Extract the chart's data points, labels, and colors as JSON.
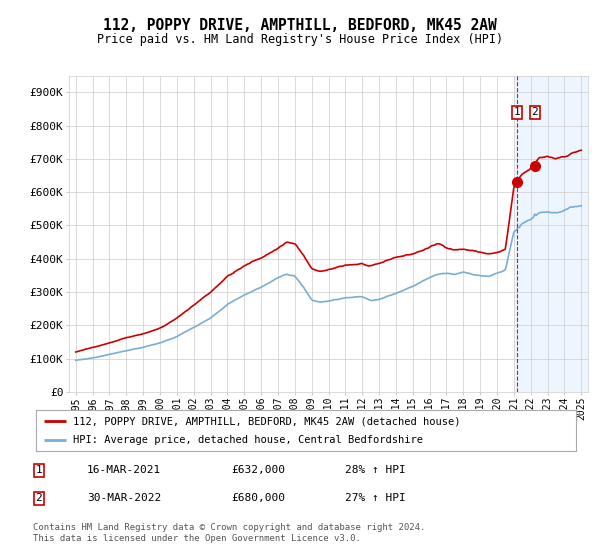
{
  "title": "112, POPPY DRIVE, AMPTHILL, BEDFORD, MK45 2AW",
  "subtitle": "Price paid vs. HM Land Registry's House Price Index (HPI)",
  "legend_line1": "112, POPPY DRIVE, AMPTHILL, BEDFORD, MK45 2AW (detached house)",
  "legend_line2": "HPI: Average price, detached house, Central Bedfordshire",
  "footnote": "Contains HM Land Registry data © Crown copyright and database right 2024.\nThis data is licensed under the Open Government Licence v3.0.",
  "transaction1_label": "1",
  "transaction1_date": "16-MAR-2021",
  "transaction1_price": "£632,000",
  "transaction1_hpi": "28% ↑ HPI",
  "transaction2_label": "2",
  "transaction2_date": "30-MAR-2022",
  "transaction2_price": "£680,000",
  "transaction2_hpi": "27% ↑ HPI",
  "line_color_red": "#cc0000",
  "line_color_blue": "#7aadd4",
  "marker_color": "#cc0000",
  "shade_color": "#ddeeff",
  "dashed_line_color": "#cc0000",
  "grid_color": "#cccccc",
  "background_color": "#ffffff",
  "ylim": [
    0,
    950000
  ],
  "yticks": [
    0,
    100000,
    200000,
    300000,
    400000,
    500000,
    600000,
    700000,
    800000,
    900000
  ],
  "ytick_labels": [
    "£0",
    "£100K",
    "£200K",
    "£300K",
    "£400K",
    "£500K",
    "£600K",
    "£700K",
    "£800K",
    "£900K"
  ],
  "start_year": 1995,
  "end_year": 2025,
  "transaction1_year": 2021.21,
  "transaction2_year": 2022.24,
  "transaction1_price_val": 632000,
  "transaction2_price_val": 680000,
  "transaction1_hpi_val": 493750,
  "transaction2_hpi_val": 534400,
  "red_keypoints_t": [
    1995,
    1996,
    1997,
    1998,
    1999,
    2000,
    2001,
    2002,
    2003,
    2004,
    2005,
    2006,
    2007,
    2007.5,
    2008,
    2008.5,
    2009,
    2009.5,
    2010,
    2011,
    2012,
    2012.5,
    2013,
    2014,
    2015,
    2016,
    2016.5,
    2017,
    2017.5,
    2018,
    2018.5,
    2019,
    2019.5,
    2020,
    2020.5,
    2021,
    2021.21,
    2021.5,
    2022,
    2022.24,
    2022.5,
    2023,
    2023.5,
    2024,
    2024.5,
    2025
  ],
  "red_keypoints_v": [
    120000,
    133000,
    148000,
    165000,
    178000,
    195000,
    225000,
    265000,
    305000,
    355000,
    385000,
    410000,
    440000,
    460000,
    455000,
    420000,
    375000,
    368000,
    370000,
    385000,
    390000,
    380000,
    385000,
    405000,
    415000,
    435000,
    445000,
    435000,
    430000,
    432000,
    428000,
    422000,
    418000,
    420000,
    430000,
    615000,
    632000,
    650000,
    665000,
    680000,
    695000,
    700000,
    695000,
    705000,
    715000,
    725000
  ],
  "blue_keypoints_t": [
    1995,
    1996,
    1997,
    1998,
    1999,
    2000,
    2001,
    2002,
    2003,
    2004,
    2005,
    2006,
    2007,
    2007.5,
    2008,
    2008.5,
    2009,
    2009.5,
    2010,
    2011,
    2012,
    2012.5,
    2013,
    2014,
    2015,
    2016,
    2016.5,
    2017,
    2017.5,
    2018,
    2018.5,
    2019,
    2019.5,
    2020,
    2020.5,
    2021,
    2021.21,
    2021.5,
    2022,
    2022.24,
    2022.5,
    2023,
    2023.5,
    2024,
    2024.5,
    2025
  ],
  "blue_keypoints_v": [
    95000,
    102000,
    113000,
    125000,
    135000,
    148000,
    168000,
    195000,
    222000,
    262000,
    290000,
    312000,
    345000,
    358000,
    352000,
    318000,
    278000,
    272000,
    275000,
    285000,
    290000,
    278000,
    282000,
    300000,
    320000,
    348000,
    358000,
    360000,
    356000,
    362000,
    358000,
    355000,
    352000,
    360000,
    370000,
    488000,
    493750,
    512000,
    525000,
    534400,
    545000,
    550000,
    548000,
    558000,
    565000,
    572000
  ]
}
